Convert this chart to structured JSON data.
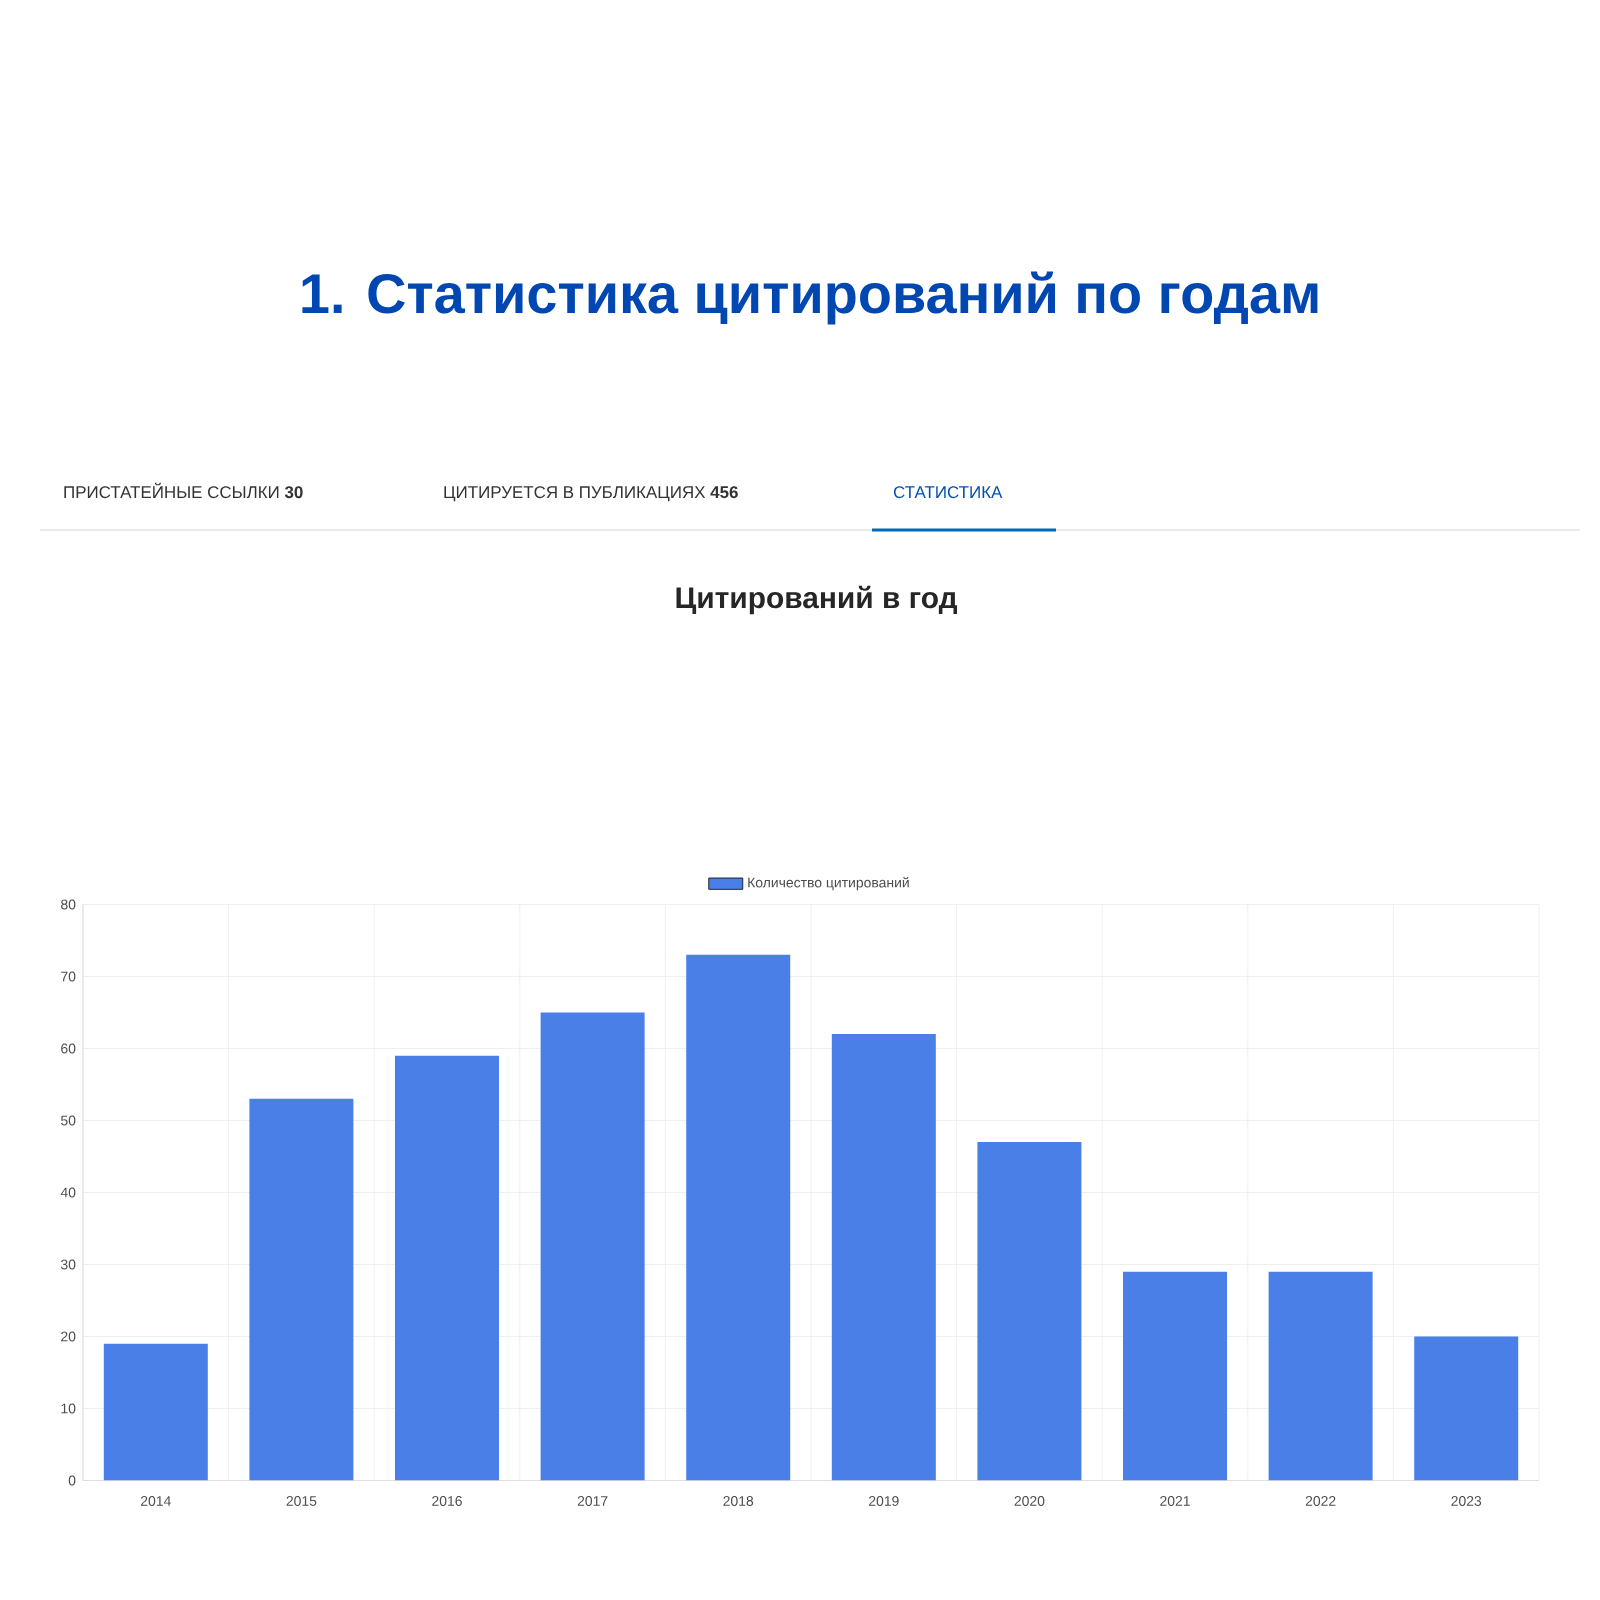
{
  "chart_data": {
    "type": "bar",
    "title": "1. Статистика цитирований по годам",
    "subtitle": "Цитирований в год",
    "annotations": [
      "ПРИСТАТЕЙНЫЕ ССЫЛКИ **30**",
      "ЦИТИРУЕТСЯ В ПУБЛИКАЦИЯХ **456**",
      "СТАТИСТИКА"
    ],
    "categories": [
      "2014",
      "2015",
      "2016",
      "2017",
      "2018",
      "2019",
      "2020",
      "2021",
      "2022",
      "2023"
    ],
    "series": [
      {
        "name": "Количество цитирований",
        "color": "#4a7fe8",
        "values": [
          19,
          53,
          59,
          65,
          73,
          62,
          47,
          29,
          29,
          20
        ]
      }
    ],
    "ylim": [
      0,
      80
    ],
    "yticks": [
      0,
      10,
      20,
      30,
      40,
      50,
      60,
      70,
      80
    ],
    "grid": true,
    "legend": "top"
  }
}
